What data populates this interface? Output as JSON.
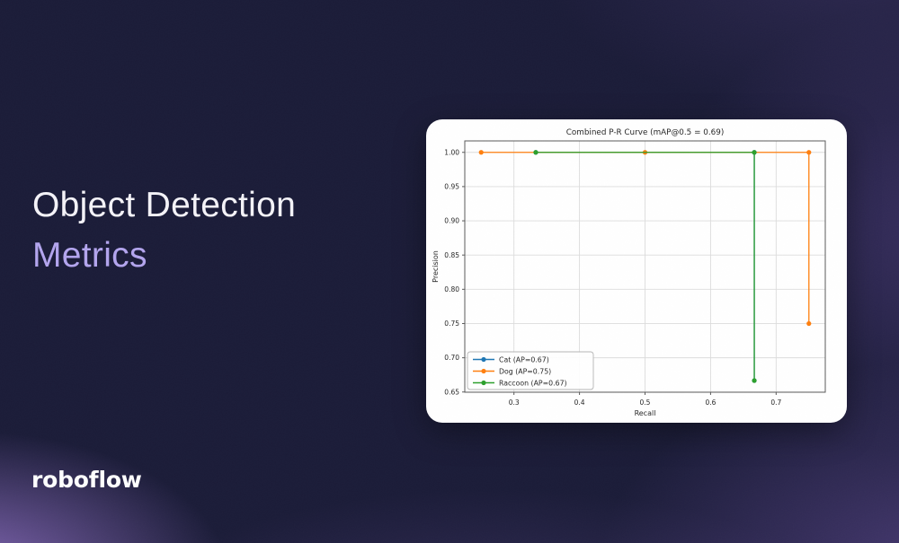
{
  "slide": {
    "title_line1": "Object Detection",
    "title_line2": "Metrics",
    "logo_text": "roboflow"
  },
  "colors": {
    "background_base": "#1b1c38",
    "glow_purple": "#8b6dbe",
    "title_primary": "#f4f3f8",
    "title_accent": "#b3a5ee",
    "card_background": "#ffffff",
    "chart_text": "#262626",
    "grid_line": "#dcdcdc",
    "axis_spine": "#5a5a5a"
  },
  "chart_data": {
    "type": "line",
    "title": "Combined P-R Curve (mAP@0.5 = 0.69)",
    "xlabel": "Recall",
    "ylabel": "Precision",
    "xlim": [
      0.225,
      0.775
    ],
    "ylim": [
      0.6497,
      1.0167
    ],
    "xtick_values": [
      0.3,
      0.4,
      0.5,
      0.6,
      0.7
    ],
    "xtick_labels": [
      "0.3",
      "0.4",
      "0.5",
      "0.6",
      "0.7"
    ],
    "ytick_values": [
      0.65,
      0.7,
      0.75,
      0.8,
      0.85,
      0.9,
      0.95,
      1.0
    ],
    "ytick_labels": [
      "0.65",
      "0.70",
      "0.75",
      "0.80",
      "0.85",
      "0.90",
      "0.95",
      "1.00"
    ],
    "grid": true,
    "legend_position": "lower left",
    "series": [
      {
        "name": "Cat (AP=0.67)",
        "color": "#1f77b4",
        "points": [
          [
            0.3333,
            1.0
          ],
          [
            0.6667,
            1.0
          ],
          [
            0.6667,
            0.6667
          ]
        ]
      },
      {
        "name": "Dog (AP=0.75)",
        "color": "#ff7f0e",
        "points": [
          [
            0.25,
            1.0
          ],
          [
            0.5,
            1.0
          ],
          [
            0.75,
            1.0
          ],
          [
            0.75,
            0.75
          ]
        ]
      },
      {
        "name": "Raccoon (AP=0.67)",
        "color": "#2ca02c",
        "points": [
          [
            0.3333,
            1.0
          ],
          [
            0.6667,
            1.0
          ],
          [
            0.6667,
            0.6667
          ]
        ]
      }
    ]
  }
}
